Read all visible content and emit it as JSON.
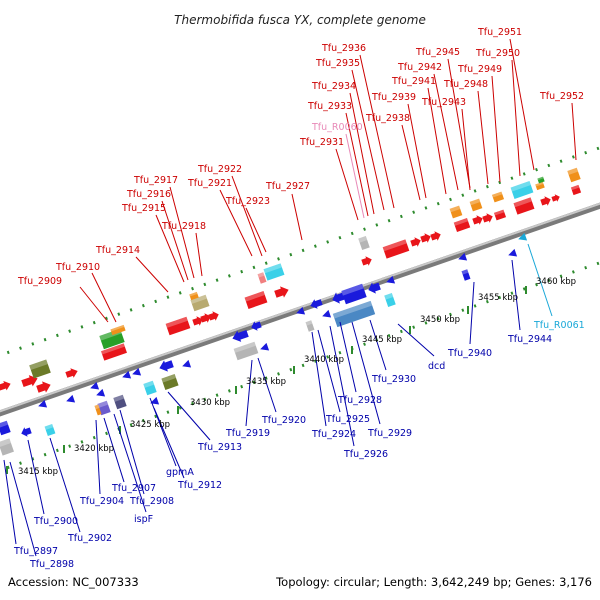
{
  "title": "Thermobifida fusca YX, complete genome",
  "footer": {
    "accession": "Accession: NC_007333",
    "topology": "Topology: circular; Length: 3,642,249 bp; Genes: 3,176"
  },
  "colors": {
    "forward_label": "#cc0000",
    "reverse_label": "#0000aa",
    "rna_reverse_label": "#1aa8d8",
    "rna_forward_label": "#e88ab8",
    "backbone": "#9a9a9a",
    "tick": "#2e8b2e"
  },
  "kbp_ticks": [
    "3415 kbp",
    "3420 kbp",
    "3425 kbp",
    "3430 kbp",
    "3435 kbp",
    "3440 kbp",
    "3445 kbp",
    "3450 kbp",
    "3455 kbp",
    "3460 kbp"
  ],
  "forward_labels": [
    "Tfu_2909",
    "Tfu_2910",
    "Tfu_2914",
    "Tfu_2915",
    "Tfu_2916",
    "Tfu_2917",
    "Tfu_2918",
    "Tfu_2921",
    "Tfu_2922",
    "Tfu_2923",
    "Tfu_2927",
    "Tfu_2931",
    "Tfu_R0060",
    "Tfu_2933",
    "Tfu_2934",
    "Tfu_2935",
    "Tfu_2936",
    "Tfu_2938",
    "Tfu_2939",
    "Tfu_2941",
    "Tfu_2942",
    "Tfu_2943",
    "Tfu_2945",
    "Tfu_2948",
    "Tfu_2949",
    "Tfu_2950",
    "Tfu_2951",
    "Tfu_2952"
  ],
  "reverse_labels": [
    "Tfu_2897",
    "Tfu_2898",
    "Tfu_2900",
    "Tfu_2902",
    "Tfu_2904",
    "Tfu_2907",
    "ispF",
    "Tfu_2908",
    "gpmA",
    "Tfu_2912",
    "Tfu_2913",
    "Tfu_2919",
    "Tfu_2920",
    "Tfu_2924",
    "Tfu_2925",
    "Tfu_2926",
    "Tfu_2928",
    "Tfu_2929",
    "Tfu_2930",
    "dcd",
    "Tfu_2940",
    "Tfu_2944",
    "Tfu_R0061"
  ]
}
